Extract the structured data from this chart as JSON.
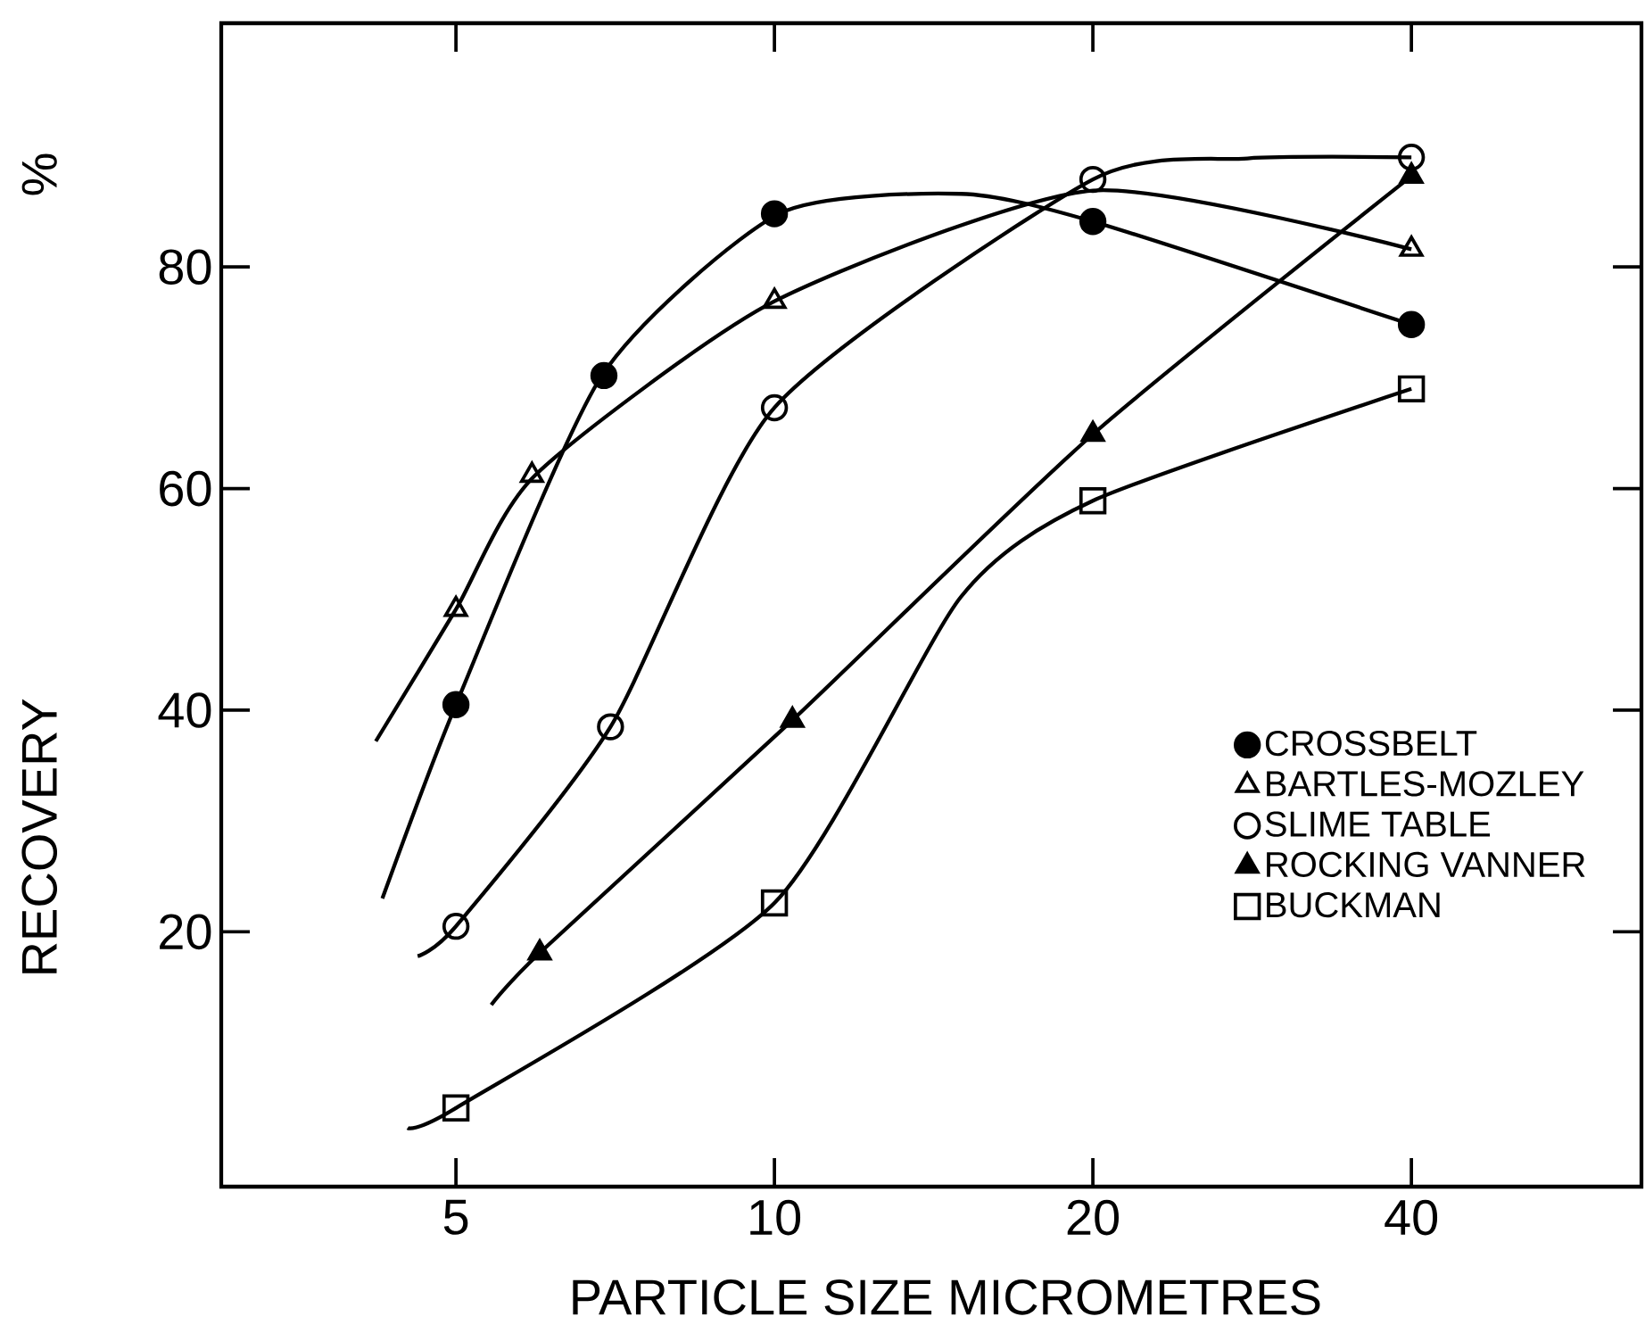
{
  "chart_data": {
    "type": "scatter",
    "xlabel": "PARTICLE SIZE MICROMETRES",
    "ylabel": "RECOVERY",
    "annotations": [
      "%"
    ],
    "log": "x",
    "xlim": [
      3,
      66
    ],
    "ylim": [
      -3,
      102
    ],
    "xticks": [
      5,
      10,
      20,
      40
    ],
    "yticks": [
      20,
      40,
      60,
      80
    ],
    "legend": "bottom right",
    "series": [
      {
        "name": "CROSSBELT",
        "type": "scatter",
        "marker": "circle",
        "color": "#000000",
        "x": [
          5,
          6.9,
          10,
          20,
          40
        ],
        "values": [
          40.5,
          70.2,
          84.8,
          84.1,
          74.8
        ]
      },
      {
        "name": "BARTLES-MOZLEY",
        "type": "scatter",
        "marker": "triangle",
        "color": "#ffffff",
        "x": [
          5,
          5.9,
          10,
          20,
          40
        ],
        "values": [
          49.1,
          61.2,
          76.9,
          null,
          81.6
        ]
      },
      {
        "name": "SLIME TABLE",
        "type": "scatter",
        "marker": "circle",
        "color": "#ffffff",
        "x": [
          5,
          7,
          10,
          20,
          40
        ],
        "values": [
          20.5,
          38.5,
          67.3,
          87.9,
          89.9
        ]
      },
      {
        "name": "ROCKING VANNER",
        "type": "scatter",
        "marker": "triangle",
        "color": "#000000",
        "x": [
          6,
          10.4,
          20,
          40
        ],
        "values": [
          18.1,
          39.1,
          64.9,
          88.2
        ]
      },
      {
        "name": "BUCKMAN",
        "type": "scatter",
        "marker": "square",
        "color": "#ffffff",
        "x": [
          5,
          10,
          20,
          40
        ],
        "values": [
          4.1,
          22.6,
          58.9,
          69.0
        ]
      },
      {
        "type": "line",
        "line_style": "solid",
        "color": "#000000",
        "x": [
          4.26,
          5,
          6.87,
          10.1,
          15,
          20,
          40
        ],
        "values": [
          23,
          40.5,
          70.2,
          84.8,
          86.6,
          84.1,
          74.8
        ]
      },
      {
        "type": "line",
        "line_style": "solid",
        "color": "#000000",
        "x": [
          4.2,
          5,
          5.94,
          10,
          20,
          40
        ],
        "values": [
          37.2,
          49.1,
          61.2,
          76.9,
          86.9,
          81.6
        ]
      },
      {
        "type": "line",
        "line_style": "solid",
        "color": "#000000",
        "x": [
          4.6,
          5,
          7,
          10,
          20,
          28,
          40
        ],
        "values": [
          17.8,
          20.5,
          38.5,
          67.3,
          87.9,
          89.8,
          89.9
        ]
      },
      {
        "type": "line",
        "line_style": "solid",
        "color": "#000000",
        "x": [
          5.4,
          6,
          10.4,
          20,
          40
        ],
        "values": [
          13.4,
          18.1,
          39.1,
          64.9,
          88.2
        ]
      },
      {
        "type": "line",
        "line_style": "solid",
        "color": "#000000",
        "x": [
          4.5,
          5,
          10,
          15,
          20,
          40
        ],
        "values": [
          2.3,
          4.1,
          22.6,
          50.2,
          58.9,
          69.0
        ]
      }
    ]
  }
}
